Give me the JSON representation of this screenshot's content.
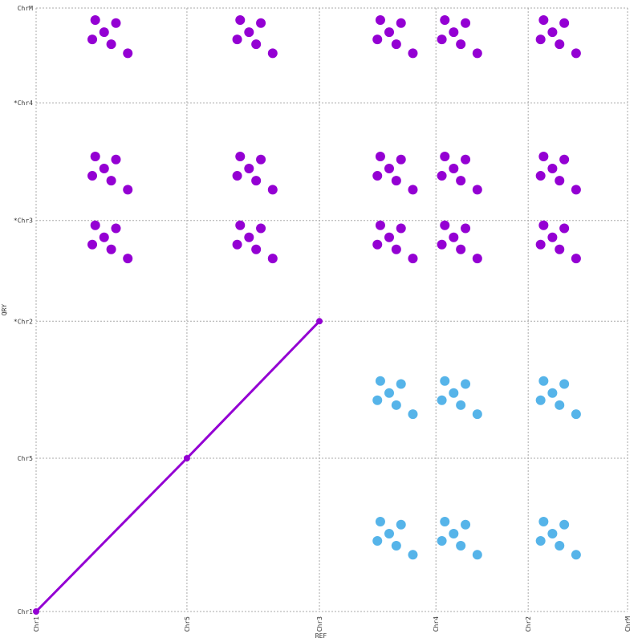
{
  "chart_data": {
    "type": "scatter",
    "xlabel": "REF",
    "ylabel": "QRY",
    "xlim": [
      0,
      100
    ],
    "ylim": [
      0,
      100
    ],
    "xticks": [
      {
        "value": 0,
        "label": "Chr1"
      },
      {
        "value": 25.5,
        "label": "Chr5"
      },
      {
        "value": 47.9,
        "label": "Chr3"
      },
      {
        "value": 67.6,
        "label": "Chr4"
      },
      {
        "value": 83.2,
        "label": "Chr2"
      },
      {
        "value": 100,
        "label": "ChrM"
      }
    ],
    "yticks": [
      {
        "value": 0,
        "label": "Chr1"
      },
      {
        "value": 25.4,
        "label": "Chr5"
      },
      {
        "value": 48.1,
        "label": "*Chr2"
      },
      {
        "value": 64.8,
        "label": "*Chr3"
      },
      {
        "value": 84.3,
        "label": "*Chr4"
      },
      {
        "value": 100,
        "label": "ChrM"
      }
    ],
    "grid": true,
    "line": {
      "color": "#9400d3",
      "x": [
        0,
        25.5,
        47.9
      ],
      "y": [
        0,
        25.4,
        48.1
      ]
    },
    "series": [
      {
        "color": "#9400d3",
        "x": [
          11.5,
          13.5,
          9.5,
          12.7,
          10,
          15.5,
          36,
          38,
          34,
          37.2,
          34.5,
          40,
          59.7,
          61.7,
          57.7,
          60.9,
          58.2,
          63.7,
          70.6,
          72.6,
          68.6,
          71.8,
          69.1,
          74.6,
          87.3,
          89.3,
          85.3,
          88.5,
          85.8,
          91.3,
          11.5,
          13.5,
          9.5,
          12.7,
          10,
          15.5,
          36,
          38,
          34,
          37.2,
          34.5,
          40,
          59.7,
          61.7,
          57.7,
          60.9,
          58.2,
          63.7,
          70.6,
          72.6,
          68.6,
          71.8,
          69.1,
          74.6,
          87.3,
          89.3,
          85.3,
          88.5,
          85.8,
          91.3,
          11.5,
          13.5,
          9.5,
          12.7,
          10,
          15.5,
          36,
          38,
          34,
          37.2,
          34.5,
          40,
          59.7,
          61.7,
          57.7,
          60.9,
          58.2,
          63.7,
          70.6,
          72.6,
          68.6,
          71.8,
          69.1,
          74.6,
          87.3,
          89.3,
          85.3,
          88.5,
          85.8,
          91.3
        ],
        "y": [
          96,
          97.5,
          94.8,
          94,
          98,
          92.5,
          96,
          97.5,
          94.8,
          94,
          98,
          92.5,
          96,
          97.5,
          94.8,
          94,
          98,
          92.5,
          96,
          97.5,
          94.8,
          94,
          98,
          92.5,
          96,
          97.5,
          94.8,
          94,
          98,
          92.5,
          73.4,
          74.9,
          72.2,
          71.4,
          75.4,
          69.9,
          73.4,
          74.9,
          72.2,
          71.4,
          75.4,
          69.9,
          73.4,
          74.9,
          72.2,
          71.4,
          75.4,
          69.9,
          73.4,
          74.9,
          72.2,
          71.4,
          75.4,
          69.9,
          73.4,
          74.9,
          72.2,
          71.4,
          75.4,
          69.9,
          62,
          63.5,
          60.8,
          60,
          64,
          58.5,
          62,
          63.5,
          60.8,
          60,
          64,
          58.5,
          62,
          63.5,
          60.8,
          60,
          64,
          58.5,
          62,
          63.5,
          60.8,
          60,
          64,
          58.5,
          62,
          63.5,
          60.8,
          60,
          64,
          58.5
        ]
      },
      {
        "color": "#56b4e9",
        "x": [
          59.7,
          61.7,
          57.7,
          60.9,
          58.2,
          63.7,
          70.6,
          72.6,
          68.6,
          71.8,
          69.1,
          74.6,
          87.3,
          89.3,
          85.3,
          88.5,
          85.8,
          91.3,
          59.7,
          61.7,
          57.7,
          60.9,
          58.2,
          63.7,
          70.6,
          72.6,
          68.6,
          71.8,
          69.1,
          74.6,
          87.3,
          89.3,
          85.3,
          88.5,
          85.8,
          91.3
        ],
        "y": [
          36.2,
          37.7,
          35,
          34.2,
          38.2,
          32.7,
          36.2,
          37.7,
          35,
          34.2,
          38.2,
          32.7,
          36.2,
          37.7,
          35,
          34.2,
          38.2,
          32.7,
          12.9,
          14.4,
          11.7,
          10.9,
          14.9,
          9.4,
          12.9,
          14.4,
          11.7,
          10.9,
          14.9,
          9.4,
          12.9,
          14.4,
          11.7,
          10.9,
          14.9,
          9.4
        ]
      }
    ]
  }
}
